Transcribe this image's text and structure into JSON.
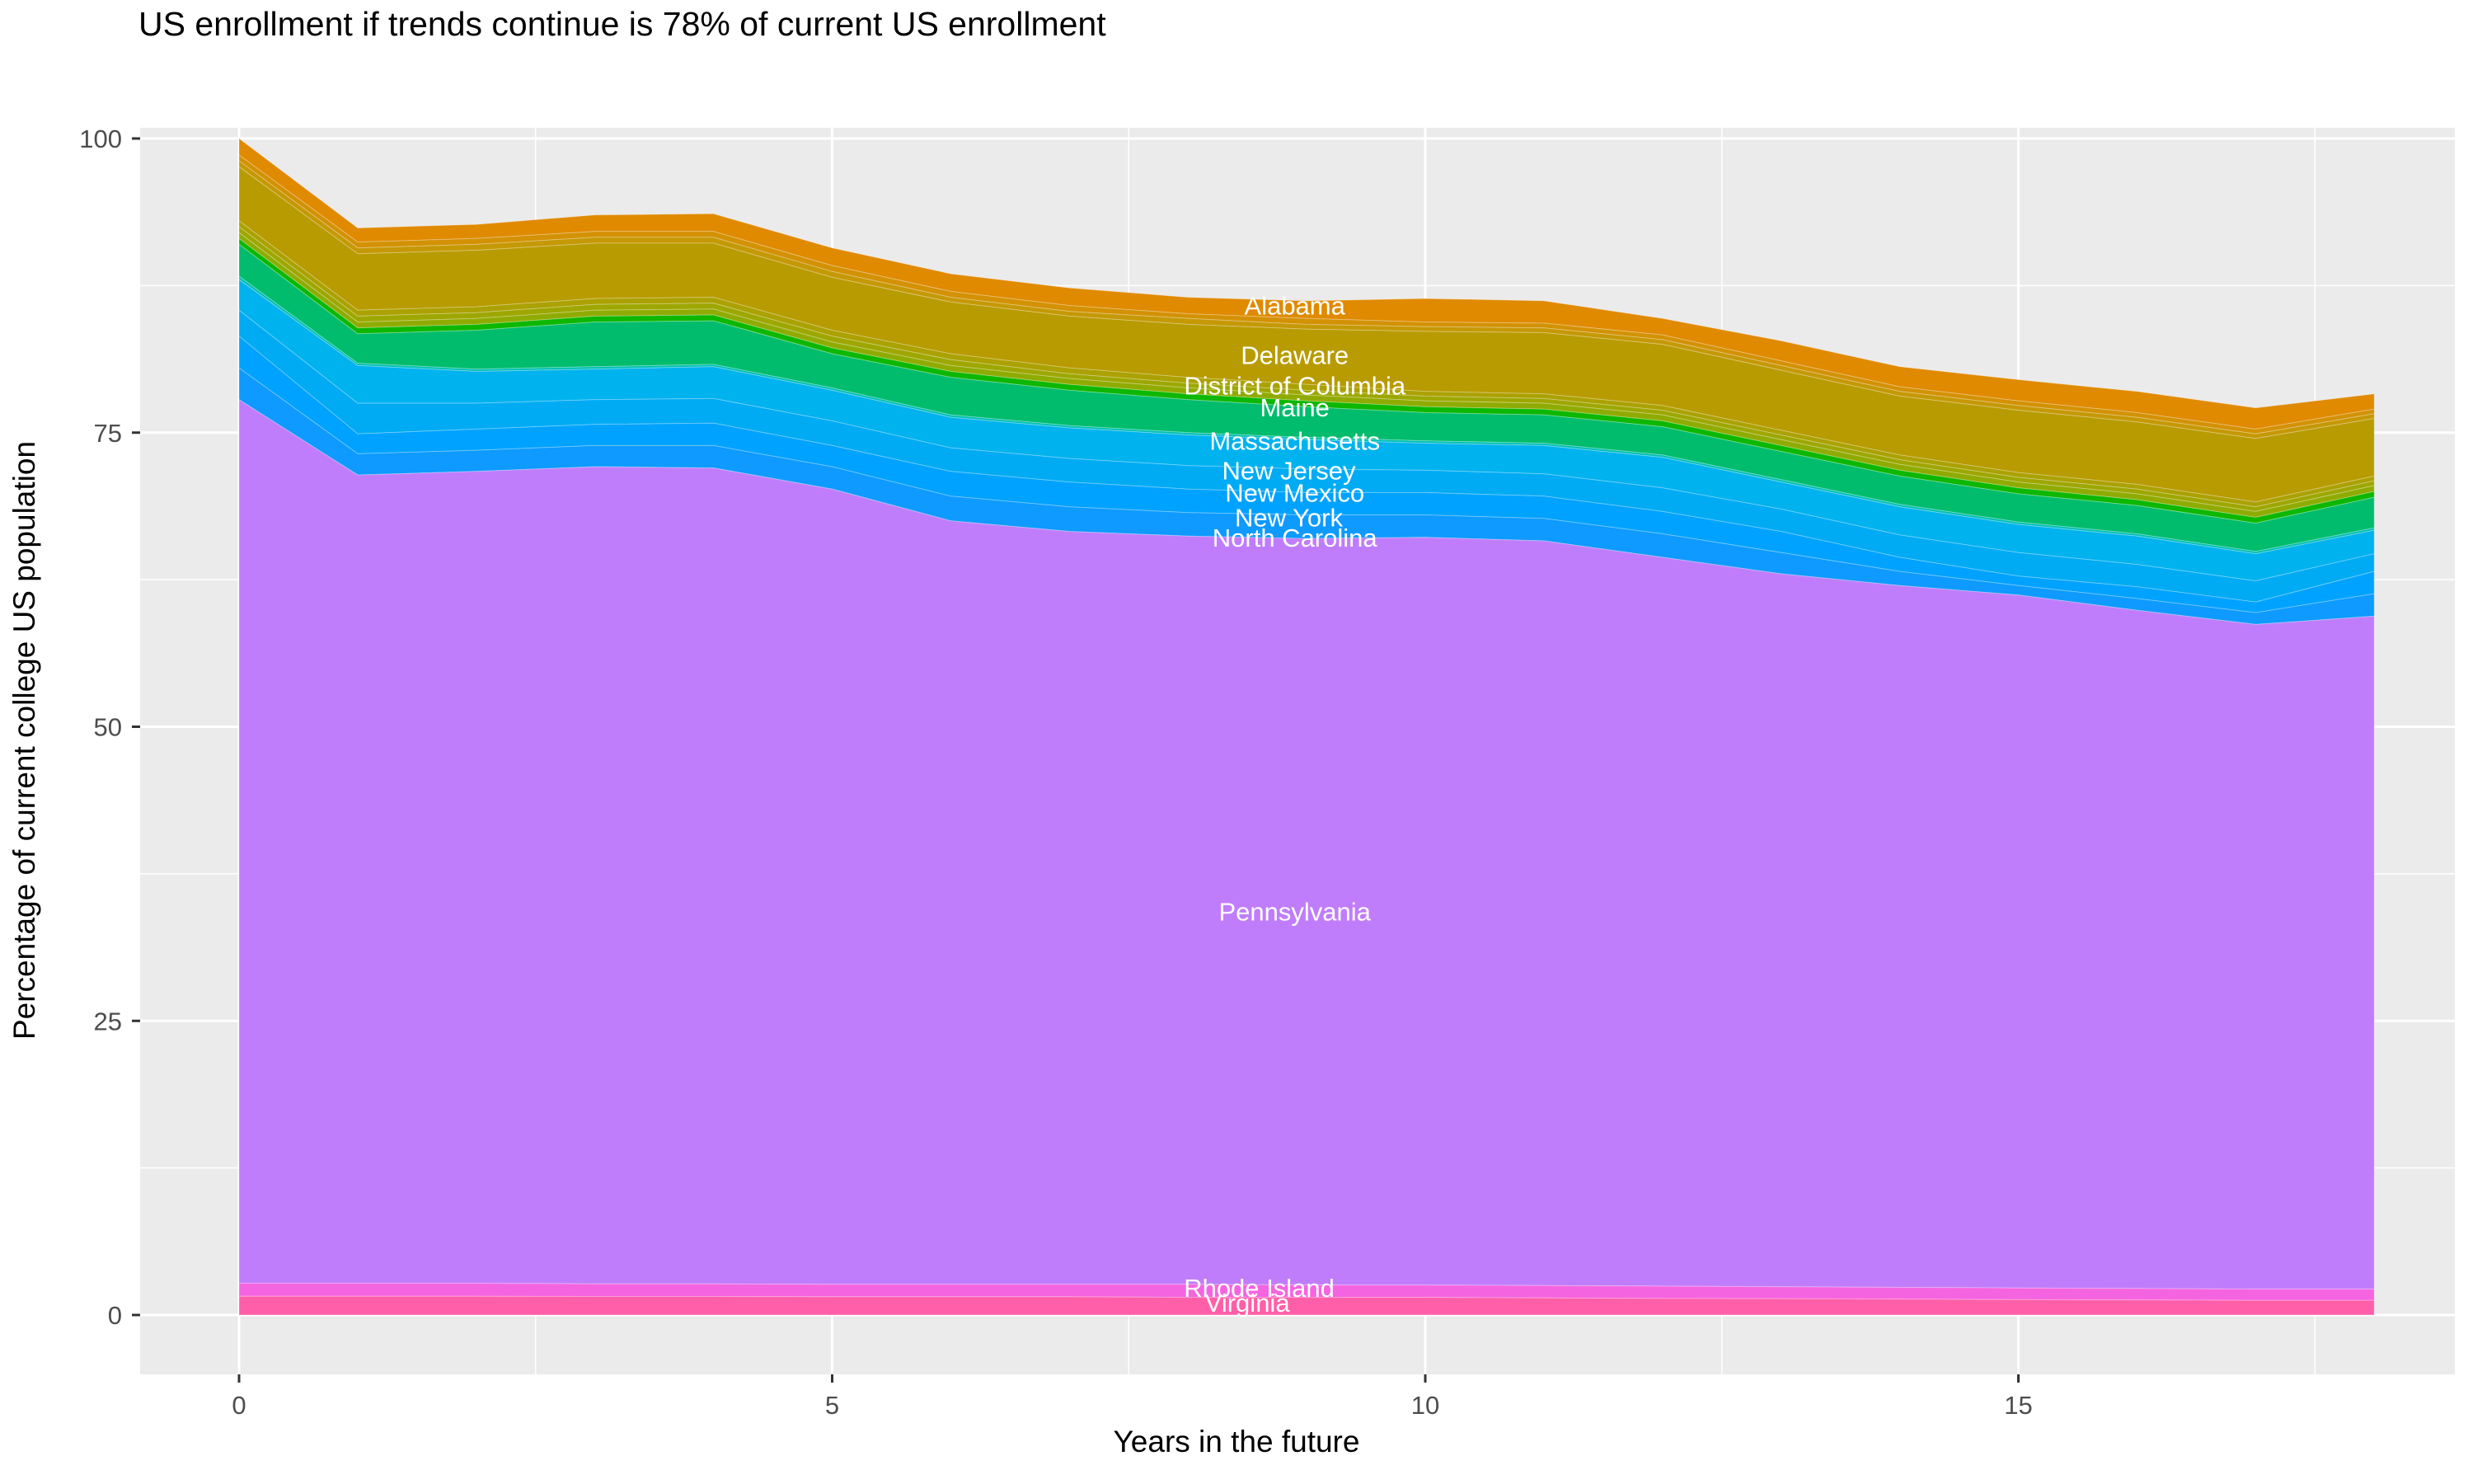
{
  "title": "US enrollment if trends continue is 78% of current US enrollment",
  "chart_data": {
    "type": "area",
    "title": "US enrollment if trends continue is 78% of current US enrollment",
    "xlabel": "Years in the future",
    "ylabel": "Percentage of current college US population",
    "legend": "none",
    "grid": "on",
    "panel_background": "#EBEBEB",
    "grid_color": "#FFFFFF",
    "axis_text_color": "#4d4d4d",
    "x": [
      0,
      1,
      2,
      3,
      4,
      5,
      6,
      7,
      8,
      9,
      10,
      11,
      12,
      13,
      14,
      15,
      16,
      17,
      18
    ],
    "x_ticks": [
      0,
      5,
      10,
      15
    ],
    "y_ticks": [
      0,
      25,
      50,
      75,
      100
    ],
    "x_minor_ticks": [
      2.5,
      7.5,
      12.5,
      17.5
    ],
    "y_minor_ticks": [
      12.5,
      37.5,
      62.5,
      87.5
    ],
    "xlim": [
      0,
      18
    ],
    "ylim": [
      0,
      100
    ],
    "bands_note": "bands listed top-to-bottom; each band fills between its 'top' curve and the next band's 'top' (last band fills to 0); values are percent of current college US population",
    "bands": [
      {
        "name": "alabama",
        "label": "Alabama",
        "color": "#E08A00",
        "top": [
          100,
          92.4,
          92.7,
          93.5,
          93.6,
          90.7,
          88.5,
          87.3,
          86.5,
          86.2,
          86.4,
          86.2,
          84.7,
          82.8,
          80.6,
          79.5,
          78.5,
          77.1,
          78.3
        ]
      },
      {
        "name": "minor-band-1",
        "label": "",
        "color": "#D39104",
        "top": [
          98.6,
          91.2,
          91.5,
          92.1,
          92.1,
          89.2,
          87.0,
          85.8,
          85.1,
          84.7,
          84.4,
          84.3,
          83.3,
          81.1,
          78.9,
          77.7,
          76.7,
          75.3,
          77.0
        ]
      },
      {
        "name": "minor-band-2",
        "label": "",
        "color": "#C59805",
        "top": [
          98.1,
          90.7,
          91.0,
          91.6,
          91.6,
          88.7,
          86.5,
          85.3,
          84.7,
          84.2,
          84.0,
          83.9,
          82.9,
          80.7,
          78.5,
          77.3,
          76.3,
          74.9,
          76.6
        ]
      },
      {
        "name": "delaware",
        "label": "Delaware",
        "color": "#B89B00",
        "top": [
          97.6,
          90.2,
          90.5,
          91.1,
          91.1,
          88.2,
          86.1,
          84.9,
          84.2,
          83.8,
          83.6,
          83.5,
          82.5,
          80.3,
          78.1,
          76.9,
          75.9,
          74.5,
          76.2
        ]
      },
      {
        "name": "district-of-columbia",
        "label": "District of Columbia",
        "color": "#ABA100",
        "top": [
          93.0,
          85.4,
          85.7,
          86.4,
          86.5,
          83.7,
          81.7,
          80.5,
          79.7,
          79.1,
          78.5,
          78.3,
          77.3,
          75.2,
          73.1,
          71.6,
          70.6,
          69.1,
          71.3
        ]
      },
      {
        "name": "minor-band-3",
        "label": "",
        "color": "#9EA700",
        "top": [
          92.5,
          84.9,
          85.2,
          85.9,
          86.0,
          83.2,
          81.2,
          80.0,
          79.2,
          78.6,
          78.1,
          77.9,
          76.9,
          74.8,
          72.7,
          71.2,
          70.2,
          68.7,
          70.9
        ]
      },
      {
        "name": "minor-band-4",
        "label": "",
        "color": "#90AB00",
        "top": [
          92.0,
          84.4,
          84.7,
          85.4,
          85.5,
          82.7,
          80.7,
          79.6,
          78.8,
          78.2,
          77.7,
          77.5,
          76.5,
          74.4,
          72.3,
          70.8,
          69.8,
          68.3,
          70.5
        ]
      },
      {
        "name": "maine",
        "label": "Maine",
        "color": "#0DB702",
        "top": [
          91.5,
          83.9,
          84.2,
          84.9,
          85.0,
          82.2,
          80.2,
          79.1,
          78.3,
          77.7,
          77.2,
          77.0,
          76.0,
          73.9,
          71.8,
          70.3,
          69.3,
          67.8,
          70.0
        ]
      },
      {
        "name": "massachusetts",
        "label": "Massachusetts",
        "color": "#00BC6C",
        "top": [
          91.0,
          83.4,
          83.7,
          84.4,
          84.5,
          81.7,
          79.7,
          78.6,
          77.8,
          77.2,
          76.7,
          76.5,
          75.5,
          73.4,
          71.3,
          69.8,
          68.8,
          67.3,
          69.5
        ]
      },
      {
        "name": "minor-band-5",
        "label": "",
        "color": "#00C0B4",
        "top": [
          88.3,
          80.9,
          80.4,
          80.6,
          80.8,
          78.8,
          76.5,
          75.6,
          75.0,
          74.6,
          74.3,
          74.1,
          73.1,
          71.0,
          68.9,
          67.4,
          66.4,
          64.9,
          66.9
        ]
      },
      {
        "name": "new-jersey",
        "label": "New Jersey",
        "color": "#00B2EE",
        "top": [
          88.0,
          80.7,
          80.2,
          80.4,
          80.6,
          78.6,
          76.3,
          75.4,
          74.8,
          74.4,
          74.1,
          73.9,
          72.9,
          70.8,
          68.7,
          67.2,
          66.2,
          64.7,
          66.7
        ]
      },
      {
        "name": "new-mexico",
        "label": "New Mexico",
        "color": "#00ABF4",
        "top": [
          85.4,
          77.5,
          77.5,
          77.8,
          77.9,
          76.0,
          73.7,
          72.8,
          72.2,
          71.9,
          71.8,
          71.5,
          70.3,
          68.5,
          66.3,
          64.8,
          63.8,
          62.4,
          64.7
        ]
      },
      {
        "name": "new-york",
        "label": "New York",
        "color": "#00A2FF",
        "top": [
          83.2,
          74.9,
          75.3,
          75.7,
          75.8,
          73.9,
          71.7,
          70.8,
          70.2,
          69.9,
          69.9,
          69.6,
          68.3,
          66.6,
          64.4,
          62.8,
          61.9,
          60.6,
          63.2
        ]
      },
      {
        "name": "north-carolina",
        "label": "North Carolina",
        "color": "#0E9AFF",
        "top": [
          80.5,
          73.2,
          73.5,
          73.9,
          73.9,
          72.1,
          69.6,
          68.7,
          68.2,
          68.0,
          68.0,
          67.7,
          66.4,
          64.8,
          63.2,
          62.0,
          60.9,
          59.7,
          61.3
        ]
      },
      {
        "name": "pennsylvania",
        "label": "Pennsylvania",
        "color": "#C07DFB",
        "top": [
          77.8,
          71.4,
          71.7,
          72.1,
          72.0,
          70.2,
          67.5,
          66.6,
          66.2,
          66.0,
          66.1,
          65.8,
          64.4,
          63.0,
          62.0,
          61.2,
          59.9,
          58.7,
          59.4
        ]
      },
      {
        "name": "rhode-island",
        "label": "Rhode Island",
        "color": "#F564E0",
        "top": [
          2.7,
          2.7,
          2.7,
          2.65,
          2.65,
          2.6,
          2.6,
          2.6,
          2.6,
          2.55,
          2.55,
          2.5,
          2.45,
          2.4,
          2.35,
          2.3,
          2.25,
          2.2,
          2.2
        ]
      },
      {
        "name": "virginia",
        "label": "Virginia",
        "color": "#FF5FA9",
        "top": [
          1.6,
          1.6,
          1.6,
          1.58,
          1.58,
          1.55,
          1.55,
          1.55,
          1.5,
          1.5,
          1.5,
          1.45,
          1.4,
          1.38,
          1.35,
          1.3,
          1.28,
          1.25,
          1.25
        ]
      }
    ],
    "annotations": [
      {
        "band": "alabama",
        "text": "Alabama",
        "x": 8.9,
        "y": 85.8
      },
      {
        "band": "delaware",
        "text": "Delaware",
        "x": 8.9,
        "y": 81.6
      },
      {
        "band": "district-of-columbia",
        "text": "District of Columbia",
        "x": 8.9,
        "y": 79.0
      },
      {
        "band": "maine",
        "text": "Maine",
        "x": 8.9,
        "y": 77.15
      },
      {
        "band": "massachusetts",
        "text": "Massachusetts",
        "x": 8.9,
        "y": 74.3
      },
      {
        "band": "new-jersey",
        "text": "New Jersey",
        "x": 8.85,
        "y": 71.8
      },
      {
        "band": "new-mexico",
        "text": "New Mexico",
        "x": 8.9,
        "y": 69.9
      },
      {
        "band": "new-york",
        "text": "New York",
        "x": 8.85,
        "y": 67.8
      },
      {
        "band": "north-carolina",
        "text": "North Carolina",
        "x": 8.9,
        "y": 66.1
      },
      {
        "band": "pennsylvania",
        "text": "Pennsylvania",
        "x": 8.9,
        "y": 34.3
      },
      {
        "band": "rhode-island",
        "text": "Rhode Island",
        "x": 8.6,
        "y": 2.3
      },
      {
        "band": "virginia",
        "text": "Virginia",
        "x": 8.5,
        "y": 1.05
      }
    ]
  }
}
